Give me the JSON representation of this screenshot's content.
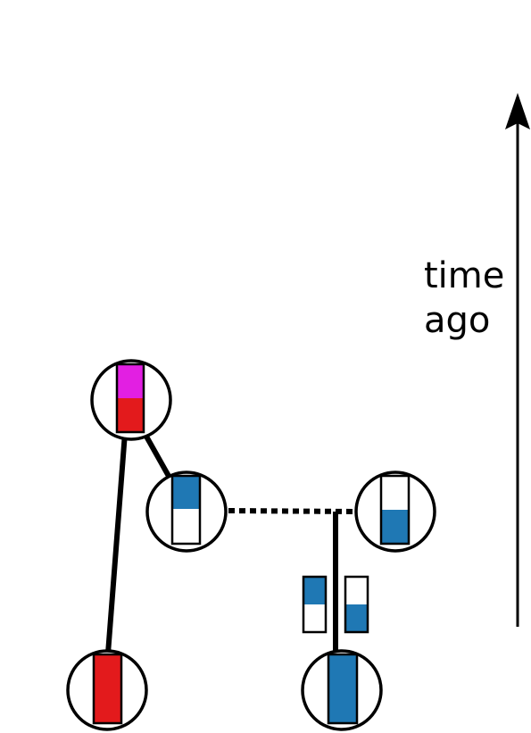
{
  "axis": {
    "label_line1": "time",
    "label_line2": "ago"
  },
  "colors": {
    "red": "#e31a1c",
    "magenta": "#e21fe2",
    "blue": "#1f78b4",
    "white": "#ffffff",
    "stroke": "#000000"
  },
  "nodes": [
    {
      "id": "ancestor-node",
      "top_color": "magenta",
      "bottom_color": "red",
      "blue_fraction": 0
    },
    {
      "id": "mid-left-node",
      "top_color": "blue",
      "bottom_color": "white",
      "blue_fraction": 0.5
    },
    {
      "id": "mid-right-node",
      "top_color": "white",
      "bottom_color": "blue",
      "blue_fraction": 0.5
    },
    {
      "id": "present-left-node",
      "top_color": "red",
      "bottom_color": "red",
      "blue_fraction": 0
    },
    {
      "id": "present-right-node",
      "top_color": "blue",
      "bottom_color": "blue",
      "blue_fraction": 1
    }
  ],
  "loose_bars": [
    {
      "id": "loose-bar-left",
      "top_color": "blue",
      "bottom_color": "white"
    },
    {
      "id": "loose-bar-right",
      "top_color": "white",
      "bottom_color": "blue"
    }
  ]
}
